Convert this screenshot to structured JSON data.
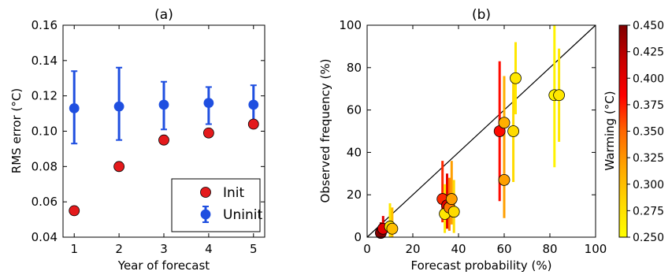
{
  "chart_data": [
    {
      "type": "scatter",
      "title": "(a)",
      "xlabel": "Year of forecast",
      "ylabel": "RMS error (°C)",
      "xlim": [
        0.75,
        5.25
      ],
      "ylim": [
        0.04,
        0.16
      ],
      "xticks": [
        1,
        2,
        3,
        4,
        5
      ],
      "yticks": [
        0.04,
        0.06,
        0.08,
        0.1,
        0.12,
        0.14,
        0.16
      ],
      "ytick_labels": [
        "0.04",
        "0.06",
        "0.08",
        "0.10",
        "0.12",
        "0.14",
        "0.16"
      ],
      "legend_position": "lower-right",
      "series": [
        {
          "name": "Init",
          "color": "#e41a1c",
          "x": [
            1,
            2,
            3,
            4,
            5
          ],
          "y": [
            0.055,
            0.08,
            0.095,
            0.099,
            0.104
          ]
        },
        {
          "name": "Uninit",
          "color": "#1f4fe0",
          "x": [
            1,
            2,
            3,
            4,
            5
          ],
          "y": [
            0.113,
            0.114,
            0.115,
            0.116,
            0.115
          ],
          "err_low": [
            0.093,
            0.095,
            0.101,
            0.104,
            0.103
          ],
          "err_high": [
            0.134,
            0.136,
            0.128,
            0.125,
            0.126
          ]
        }
      ]
    },
    {
      "type": "scatter",
      "title": "(b)",
      "xlabel": "Forecast probability (%)",
      "ylabel": "Observed frequency (%)",
      "xlim": [
        0,
        100
      ],
      "ylim": [
        0,
        100
      ],
      "xticks": [
        0,
        20,
        40,
        60,
        80,
        100
      ],
      "yticks": [
        0,
        20,
        40,
        60,
        80,
        100
      ],
      "diagonal": true,
      "colorbar": {
        "label": "Warming (°C)",
        "min": 0.25,
        "max": 0.45,
        "ticks": [
          "0.250",
          "0.275",
          "0.300",
          "0.325",
          "0.350",
          "0.375",
          "0.400",
          "0.425",
          "0.450"
        ],
        "colors": [
          "#ffff00",
          "#ffd700",
          "#ffa500",
          "#ff6600",
          "#ff0000",
          "#c80000",
          "#800000"
        ]
      },
      "points": [
        {
          "x": 6,
          "y": 2,
          "lo": 0,
          "hi": 7,
          "c": 0.45
        },
        {
          "x": 7,
          "y": 4,
          "lo": 0,
          "hi": 10,
          "c": 0.4
        },
        {
          "x": 10,
          "y": 5,
          "lo": 0,
          "hi": 16,
          "c": 0.27
        },
        {
          "x": 11,
          "y": 4,
          "lo": 0,
          "hi": 14,
          "c": 0.3
        },
        {
          "x": 33,
          "y": 18,
          "lo": 7,
          "hi": 36,
          "c": 0.37
        },
        {
          "x": 35,
          "y": 15,
          "lo": 4,
          "hi": 30,
          "c": 0.4
        },
        {
          "x": 34,
          "y": 11,
          "lo": 2,
          "hi": 25,
          "c": 0.27
        },
        {
          "x": 36,
          "y": 14,
          "lo": 3,
          "hi": 28,
          "c": 0.34
        },
        {
          "x": 37,
          "y": 18,
          "lo": 6,
          "hi": 36,
          "c": 0.32
        },
        {
          "x": 38,
          "y": 12,
          "lo": 2,
          "hi": 27,
          "c": 0.28
        },
        {
          "x": 58,
          "y": 50,
          "lo": 17,
          "hi": 83,
          "c": 0.38
        },
        {
          "x": 60,
          "y": 54,
          "lo": 32,
          "hi": 76,
          "c": 0.31
        },
        {
          "x": 60,
          "y": 27,
          "lo": 9,
          "hi": 52,
          "c": 0.32
        },
        {
          "x": 64,
          "y": 50,
          "lo": 26,
          "hi": 74,
          "c": 0.28
        },
        {
          "x": 65,
          "y": 75,
          "lo": 58,
          "hi": 92,
          "c": 0.27
        },
        {
          "x": 82,
          "y": 67,
          "lo": 33,
          "hi": 100,
          "c": 0.26
        },
        {
          "x": 84,
          "y": 67,
          "lo": 45,
          "hi": 89,
          "c": 0.27
        }
      ]
    }
  ]
}
